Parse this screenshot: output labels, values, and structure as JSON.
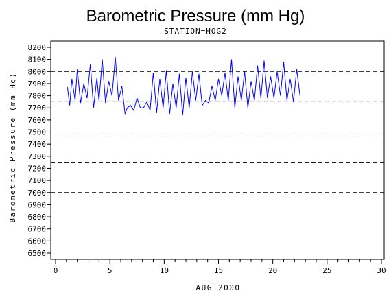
{
  "chart_data": {
    "type": "line",
    "title": "Barometric Pressure (mm Hg)",
    "subtitle": "STATION=HOG2",
    "xlabel": "AUG 2000",
    "ylabel": "Barometric Pressure (mm Hg)",
    "xlim": [
      0,
      30
    ],
    "ylim": [
      6450,
      8250
    ],
    "xticks": [
      0,
      5,
      10,
      15,
      20,
      25,
      30
    ],
    "yticks": [
      6500,
      6600,
      6700,
      6800,
      6900,
      7000,
      7100,
      7200,
      7300,
      7400,
      7500,
      7600,
      7700,
      7800,
      7900,
      8000,
      8100,
      8200
    ],
    "reference_lines": [
      7000,
      7250,
      7500,
      7750,
      8000
    ],
    "grid": false,
    "colors": {
      "series": "#0000ff",
      "reference": "#000000"
    },
    "series": [
      {
        "x": [
          1.1,
          1.3,
          1.5,
          1.8,
          2.0,
          2.3,
          2.6,
          2.9,
          3.2,
          3.5,
          3.8,
          4.0,
          4.3,
          4.6,
          4.9,
          5.2,
          5.5,
          5.8,
          6.1,
          6.4,
          6.6,
          6.9,
          7.2,
          7.5,
          7.8,
          8.1,
          8.4,
          8.7,
          9.0,
          9.3,
          9.6,
          9.9,
          10.2,
          10.5,
          10.8,
          11.1,
          11.4,
          11.7,
          12.0,
          12.3,
          12.6,
          12.9,
          13.2,
          13.5,
          13.8,
          14.1,
          14.4,
          14.7,
          15.0,
          15.3,
          15.6,
          15.9,
          16.2,
          16.5,
          16.8,
          17.1,
          17.4,
          17.7,
          18.0,
          18.3,
          18.6,
          18.9,
          19.2,
          19.5,
          19.8,
          20.1,
          20.4,
          20.7,
          21.0,
          21.3,
          21.6,
          21.9,
          22.2,
          22.5
        ],
        "y": [
          7870,
          7720,
          7940,
          7760,
          8020,
          7740,
          7900,
          7780,
          8060,
          7700,
          7950,
          7760,
          8100,
          7740,
          7920,
          7800,
          8120,
          7760,
          7880,
          7650,
          7700,
          7720,
          7680,
          7780,
          7700,
          7700,
          7750,
          7680,
          7990,
          7660,
          7940,
          7700,
          8010,
          7650,
          7900,
          7700,
          7980,
          7640,
          7950,
          7700,
          8000,
          7760,
          7980,
          7720,
          7760,
          7740,
          7880,
          7760,
          7940,
          7800,
          7990,
          7760,
          8100,
          7700,
          7960,
          7760,
          8000,
          7700,
          7920,
          7760,
          8050,
          7780,
          8090,
          7780,
          7960,
          7780,
          8000,
          7800,
          8080,
          7760,
          7940,
          7750,
          8020,
          7800
        ]
      }
    ]
  }
}
